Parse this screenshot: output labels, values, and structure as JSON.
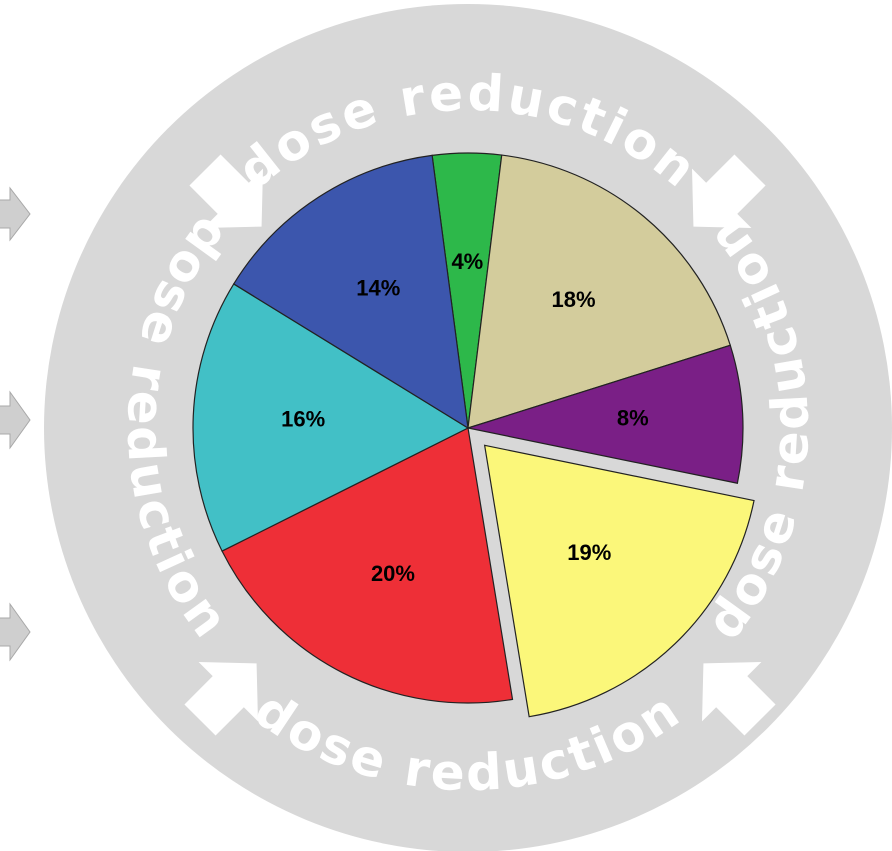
{
  "chart_data": {
    "type": "pie",
    "values": [
      4,
      18,
      8,
      19,
      20,
      16,
      14
    ],
    "value_labels": [
      "4%",
      "18%",
      "8%",
      "19%",
      "20%",
      "16%",
      "14%"
    ],
    "colors": [
      "#2db84a",
      "#d3cc9c",
      "#7a1f86",
      "#fbf77a",
      "#ee2f37",
      "#42c0c6",
      "#3c56ad"
    ],
    "explode": [
      false,
      false,
      false,
      true,
      false,
      false,
      false
    ],
    "start_angle": -7.5,
    "ring_labels": [
      "dose reduction",
      "dose reduction",
      "dose reduction",
      "dose reduction"
    ]
  }
}
